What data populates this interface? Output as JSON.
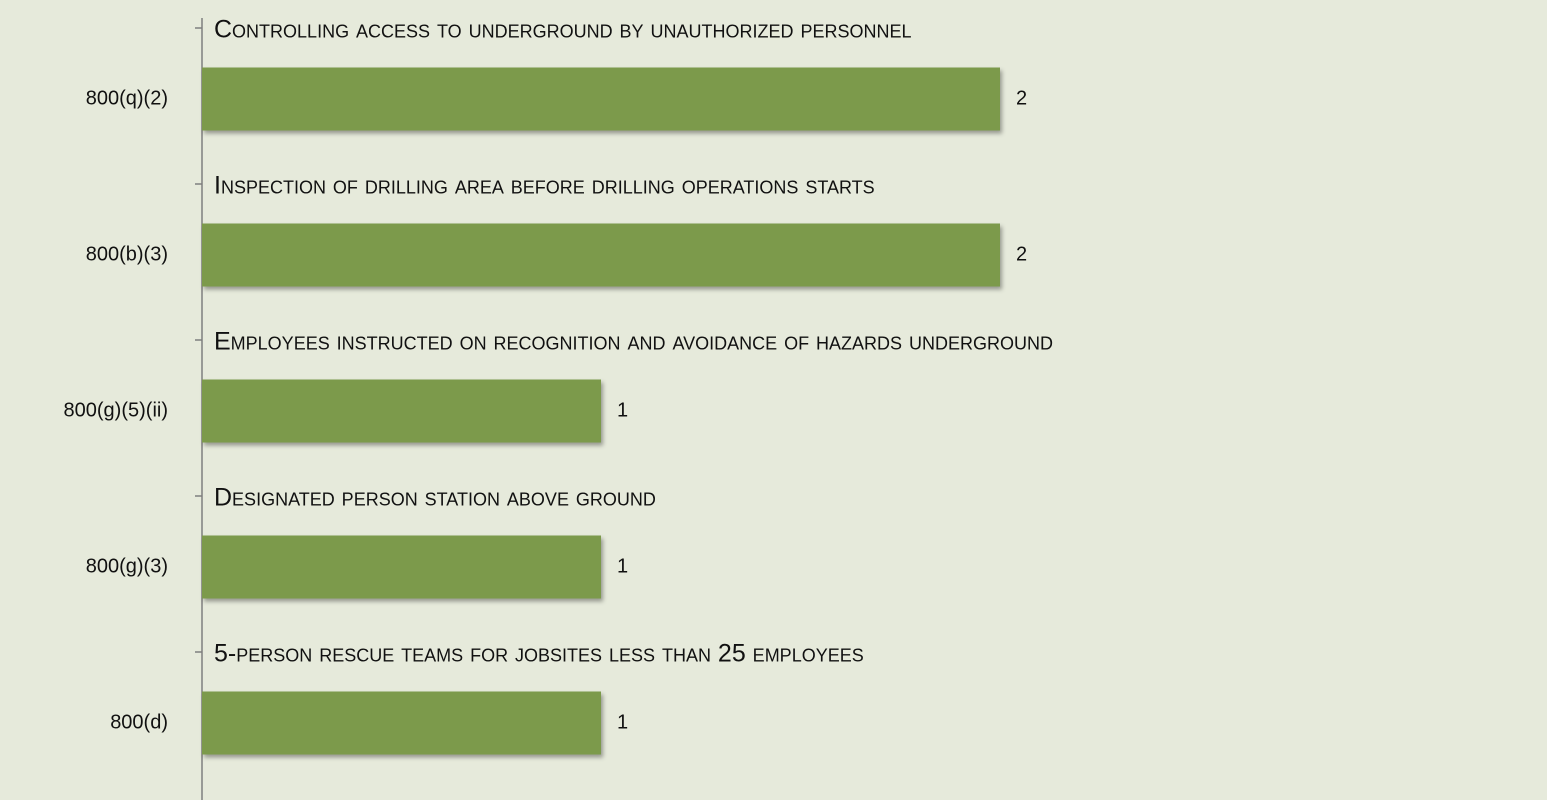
{
  "chart_data": {
    "type": "bar",
    "orientation": "horizontal",
    "categories": [
      "800(q)(2)",
      "800(b)(3)",
      "800(g)(5)(ii)",
      "800(g)(3)",
      "800(d)"
    ],
    "values": [
      2,
      2,
      1,
      1,
      1
    ],
    "annotations": [
      "Controlling access to underground by unauthorized personnel",
      "Inspection of drilling area before drilling operations starts",
      "Employees instructed  on recognition  and avoidance of hazards underground",
      "Designated person station above ground",
      "5-person rescue teams for jobsites less than 25 employees"
    ],
    "color": "#7b9a4b",
    "xlim": [
      0,
      2
    ]
  }
}
